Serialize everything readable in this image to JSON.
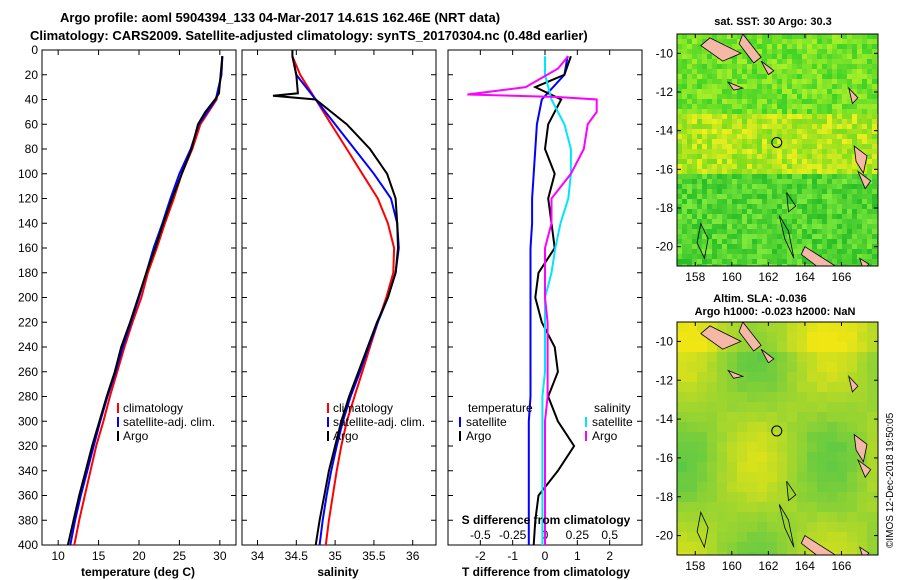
{
  "header": {
    "line1": "Argo profile: aoml 5904394_133 04-Mar-2017 14.61S 162.46E (NRT data)",
    "line2": "Climatology: CARS2009. Satellite-adjusted climatology: synTS_20170304.nc (0.48d earlier)"
  },
  "footer": {
    "timestamp": "©IMOS 12-Dec-2018 19:50:05"
  },
  "colors": {
    "climatology": "#ff0000",
    "satellite": "#0000ff",
    "argo": "#000000",
    "salinity_satellite": "#00e5ff",
    "salinity_argo": "#ff00ff"
  },
  "chart_data": [
    {
      "id": "temperature",
      "type": "line",
      "xlabel": "temperature (deg C)",
      "ylabel": "",
      "xlim": [
        8,
        32
      ],
      "ylim": [
        400,
        0
      ],
      "xticks": [
        10,
        15,
        20,
        25,
        30
      ],
      "yticks": [
        0,
        20,
        40,
        60,
        80,
        100,
        120,
        140,
        160,
        180,
        200,
        220,
        240,
        260,
        280,
        300,
        320,
        340,
        360,
        380,
        400
      ],
      "legend": [
        "climatology",
        "satellite-adj. clim.",
        "Argo"
      ],
      "series": [
        {
          "name": "climatology",
          "color": "#ff0000",
          "depth": [
            5,
            20,
            40,
            60,
            80,
            100,
            120,
            140,
            160,
            180,
            200,
            220,
            240,
            260,
            280,
            300,
            320,
            340,
            360,
            380,
            400
          ],
          "values": [
            30.3,
            30.2,
            29.6,
            27.6,
            26.6,
            25.3,
            24.3,
            23.2,
            22.2,
            21.1,
            20.3,
            19.2,
            18.2,
            17.3,
            16.4,
            15.6,
            14.7,
            14.0,
            13.3,
            12.6,
            12.0
          ]
        },
        {
          "name": "satellite-adj. clim.",
          "color": "#0000ff",
          "depth": [
            5,
            20,
            40,
            60,
            80,
            100,
            120,
            140,
            160,
            180,
            200,
            220,
            240,
            260,
            280,
            300,
            320,
            340,
            360,
            380,
            400
          ],
          "values": [
            30.3,
            30.2,
            29.5,
            27.4,
            26.4,
            25.0,
            23.9,
            22.9,
            21.8,
            20.9,
            20.0,
            19.0,
            18.0,
            17.1,
            16.1,
            15.2,
            14.4,
            13.6,
            12.8,
            12.1,
            11.5
          ]
        },
        {
          "name": "Argo",
          "color": "#000000",
          "depth": [
            5,
            20,
            35,
            40,
            50,
            60,
            80,
            100,
            120,
            140,
            160,
            180,
            200,
            220,
            240,
            260,
            280,
            300,
            320,
            340,
            360,
            380,
            400
          ],
          "values": [
            30.3,
            30.1,
            29.9,
            29.4,
            28.2,
            27.3,
            26.5,
            25.3,
            24.1,
            23.0,
            22.0,
            20.9,
            19.9,
            18.9,
            17.8,
            17.0,
            16.0,
            15.1,
            14.2,
            13.4,
            12.6,
            11.9,
            11.2
          ]
        }
      ]
    },
    {
      "id": "salinity",
      "type": "line",
      "xlabel": "salinity",
      "ylabel": "",
      "xlim": [
        33.8,
        36.3
      ],
      "ylim": [
        400,
        0
      ],
      "xticks": [
        34,
        34.5,
        35,
        35.5,
        36
      ],
      "legend": [
        "climatology",
        "satellite-adj. clim.",
        "Argo"
      ],
      "series": [
        {
          "name": "climatology",
          "color": "#ff0000",
          "depth": [
            5,
            20,
            40,
            60,
            80,
            100,
            120,
            140,
            160,
            180,
            200,
            220,
            240,
            260,
            280,
            300,
            320,
            340,
            360,
            380,
            400
          ],
          "values": [
            34.45,
            34.55,
            34.75,
            34.95,
            35.15,
            35.35,
            35.55,
            35.68,
            35.76,
            35.75,
            35.66,
            35.55,
            35.45,
            35.35,
            35.25,
            35.15,
            35.08,
            35.02,
            34.97,
            34.92,
            34.88
          ]
        },
        {
          "name": "satellite-adj. clim.",
          "color": "#0000ff",
          "depth": [
            5,
            20,
            40,
            60,
            80,
            100,
            120,
            140,
            160,
            180,
            200,
            220,
            240,
            260,
            280,
            300,
            320,
            340,
            360,
            380,
            400
          ],
          "values": [
            34.45,
            34.5,
            34.75,
            35.0,
            35.25,
            35.5,
            35.72,
            35.8,
            35.82,
            35.78,
            35.68,
            35.55,
            35.43,
            35.32,
            35.2,
            35.1,
            35.02,
            34.95,
            34.89,
            34.84,
            34.8
          ]
        },
        {
          "name": "Argo",
          "color": "#000000",
          "depth": [
            0,
            5,
            20,
            35,
            37,
            40,
            60,
            80,
            100,
            120,
            140,
            160,
            180,
            200,
            220,
            240,
            260,
            280,
            300,
            320,
            340,
            360,
            380,
            400
          ],
          "values": [
            34.45,
            34.45,
            34.5,
            34.52,
            34.2,
            34.75,
            35.15,
            35.45,
            35.67,
            35.78,
            35.8,
            35.81,
            35.78,
            35.68,
            35.54,
            35.42,
            35.3,
            35.18,
            35.08,
            35.0,
            34.92,
            34.86,
            34.8,
            34.75
          ]
        }
      ]
    },
    {
      "id": "difference",
      "type": "line",
      "xlabel": "T difference from climatology",
      "top_axis_label": "S difference from climatology",
      "xlim": [
        -3,
        3
      ],
      "ylim": [
        400,
        0
      ],
      "xticks": [
        -2,
        -1,
        0,
        1,
        2
      ],
      "sticks": [
        -0.5,
        -0.25,
        0,
        0.25,
        0.5
      ],
      "sticklabels": [
        "-0.5",
        "-0.25",
        "0",
        "0.25",
        "0.5"
      ],
      "legend_titles": [
        "temperature",
        "salinity"
      ],
      "legend": [
        "satellite",
        "Argo",
        "satellite",
        "Argo"
      ],
      "series": [
        {
          "name": "temperature satellite",
          "color": "#0000ff",
          "depth": [
            5,
            20,
            40,
            60,
            80,
            100,
            120,
            140,
            160,
            180,
            200,
            220,
            240,
            260,
            280,
            300,
            320,
            340,
            360,
            380,
            400
          ],
          "values": [
            0.7,
            0.6,
            -0.1,
            -0.25,
            -0.3,
            -0.35,
            -0.4,
            -0.4,
            -0.45,
            -0.45,
            -0.45,
            -0.45,
            -0.45,
            -0.45,
            -0.45,
            -0.5,
            -0.5,
            -0.5,
            -0.5,
            -0.5,
            -0.5
          ]
        },
        {
          "name": "temperature Argo",
          "color": "#000000",
          "depth": [
            5,
            20,
            30,
            40,
            60,
            80,
            100,
            120,
            140,
            160,
            180,
            200,
            220,
            240,
            260,
            280,
            300,
            320,
            340,
            360,
            380,
            400
          ],
          "values": [
            0.8,
            0.6,
            -0.3,
            0.5,
            0.1,
            0.0,
            0.3,
            0.1,
            0.2,
            0.3,
            -0.2,
            -0.3,
            -0.1,
            0.3,
            0.4,
            0.1,
            0.4,
            0.9,
            0.4,
            -0.2,
            -0.3,
            -0.35
          ]
        },
        {
          "name": "salinity satellite",
          "color": "#00e5ff",
          "depth": [
            5,
            20,
            40,
            60,
            80,
            100,
            120,
            140,
            160,
            180,
            200,
            220,
            240,
            260,
            280,
            300,
            320,
            340,
            360,
            380,
            400
          ],
          "values": [
            0.0,
            0.0,
            0.05,
            0.15,
            0.2,
            0.2,
            0.18,
            0.12,
            0.08,
            0.05,
            0.0,
            0.0,
            0.0,
            0.0,
            -0.02,
            -0.02,
            -0.02,
            -0.02,
            -0.02,
            -0.02,
            -0.02
          ]
        },
        {
          "name": "salinity Argo",
          "color": "#ff00ff",
          "depth": [
            5,
            15,
            30,
            36,
            38,
            40,
            50,
            60,
            80,
            100,
            120,
            140,
            160,
            180,
            200,
            220,
            240,
            260,
            280,
            300,
            320,
            340,
            360,
            380,
            400
          ],
          "values": [
            0.18,
            0.1,
            -0.15,
            -0.6,
            0.1,
            0.4,
            0.4,
            0.33,
            0.3,
            0.2,
            0.05,
            0.05,
            0.0,
            0.0,
            0.0,
            0.02,
            0.02,
            0.02,
            0.02,
            0.0,
            0.0,
            0.0,
            0.0,
            0.0,
            0.0
          ]
        }
      ]
    },
    {
      "id": "sst-map",
      "type": "heatmap",
      "title": "sat. SST: 30 Argo: 30.3",
      "xlim": [
        157,
        168
      ],
      "ylim": [
        -21,
        -9
      ],
      "xticks": [
        158,
        160,
        162,
        164,
        166
      ],
      "yticks": [
        -10,
        -12,
        -14,
        -16,
        -18,
        -20
      ],
      "marker": {
        "lon": 162.46,
        "lat": -14.61
      }
    },
    {
      "id": "sla-map",
      "type": "heatmap",
      "title": "Altim. SLA: -0.036",
      "subtitle": "Argo h1000: -0.023 h2000: NaN",
      "xlim": [
        157,
        168
      ],
      "ylim": [
        -21,
        -9
      ],
      "xticks": [
        158,
        160,
        162,
        164,
        166
      ],
      "yticks": [
        -10,
        -12,
        -14,
        -16,
        -18,
        -20
      ],
      "marker": {
        "lon": 162.46,
        "lat": -14.61
      }
    }
  ]
}
